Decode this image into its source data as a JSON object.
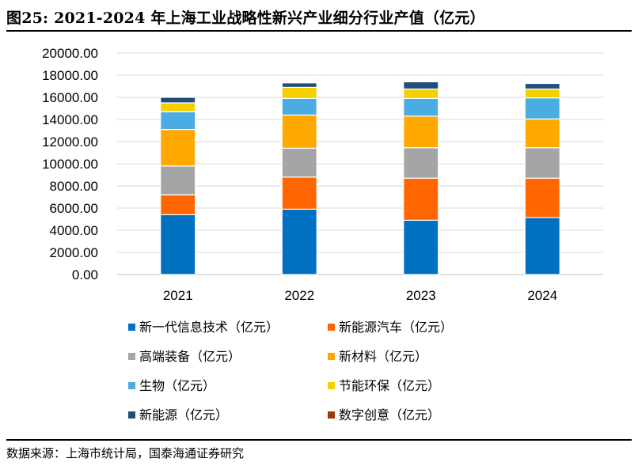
{
  "header": {
    "title": "图25:  2021-2024 年上海工业战略性新兴产业细分行业产值（亿元）"
  },
  "footer": {
    "source": "数据来源：上海市统计局，国泰海通证券研究"
  },
  "chart_data": {
    "type": "bar",
    "stacked": true,
    "title": "2021-2024 年上海工业战略性新兴产业细分行业产值（亿元）",
    "xlabel": "",
    "ylabel": "",
    "categories": [
      "2021",
      "2022",
      "2023",
      "2024"
    ],
    "ylim": [
      0,
      20000
    ],
    "yticks": [
      0,
      2000,
      4000,
      6000,
      8000,
      10000,
      12000,
      14000,
      16000,
      18000,
      20000
    ],
    "ytick_labels": [
      "0.00",
      "2000.00",
      "4000.00",
      "6000.00",
      "8000.00",
      "10000.00",
      "12000.00",
      "14000.00",
      "16000.00",
      "18000.00",
      "20000.00"
    ],
    "grid": true,
    "legend_position": "bottom",
    "series": [
      {
        "name": "新一代信息技术（亿元）",
        "color": "#0070C0",
        "values": [
          5400,
          5900,
          4900,
          5150
        ]
      },
      {
        "name": "新能源汽车（亿元）",
        "color": "#FF6600",
        "values": [
          1800,
          2900,
          3800,
          3550
        ]
      },
      {
        "name": "高端装备（亿元）",
        "color": "#A5A5A5",
        "values": [
          2600,
          2600,
          2750,
          2750
        ]
      },
      {
        "name": "新材料（亿元）",
        "color": "#FFA800",
        "values": [
          3300,
          3000,
          2850,
          2600
        ]
      },
      {
        "name": "生物（亿元）",
        "color": "#4BACE2",
        "values": [
          1600,
          1500,
          1600,
          1900
        ]
      },
      {
        "name": "节能环保（亿元）",
        "color": "#F5D000",
        "values": [
          800,
          1000,
          850,
          800
        ]
      },
      {
        "name": "新能源（亿元）",
        "color": "#1F4E79",
        "values": [
          500,
          400,
          650,
          500
        ]
      },
      {
        "name": "数字创意（亿元）",
        "color": "#9C3A0C",
        "values": [
          0,
          0,
          0,
          0
        ]
      }
    ]
  }
}
